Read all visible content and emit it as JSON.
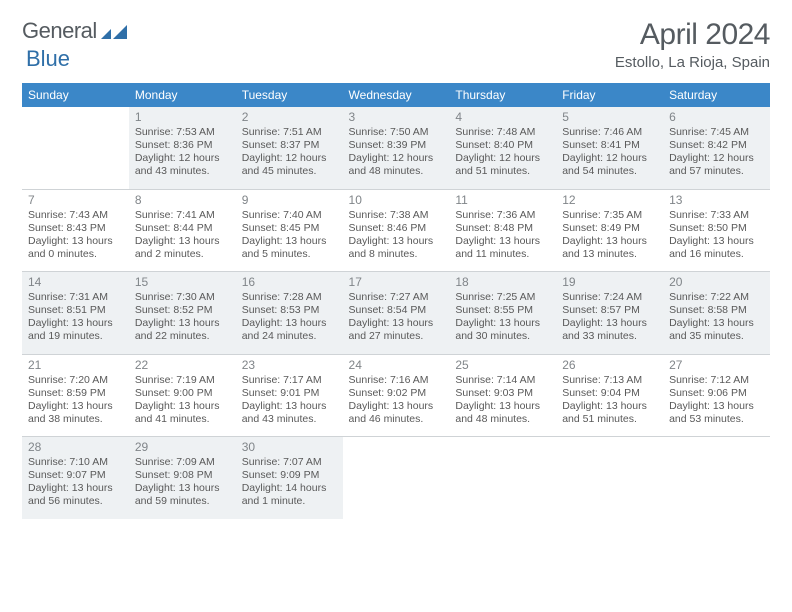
{
  "brand": {
    "part1": "General",
    "part2": "Blue",
    "logo_color": "#2f6fa8"
  },
  "title": "April 2024",
  "location": "Estollo, La Rioja, Spain",
  "colors": {
    "header_bg": "#3b87c8",
    "header_text": "#ffffff",
    "shade_row_bg": "#eef1f3",
    "text": "#595959",
    "daynum": "#808589",
    "rule": "#cfd3d6"
  },
  "dow": [
    "Sunday",
    "Monday",
    "Tuesday",
    "Wednesday",
    "Thursday",
    "Friday",
    "Saturday"
  ],
  "weeks": [
    {
      "shade": true,
      "days": [
        null,
        {
          "n": "1",
          "sr": "7:53 AM",
          "ss": "8:36 PM",
          "dl": "12 hours and 43 minutes."
        },
        {
          "n": "2",
          "sr": "7:51 AM",
          "ss": "8:37 PM",
          "dl": "12 hours and 45 minutes."
        },
        {
          "n": "3",
          "sr": "7:50 AM",
          "ss": "8:39 PM",
          "dl": "12 hours and 48 minutes."
        },
        {
          "n": "4",
          "sr": "7:48 AM",
          "ss": "8:40 PM",
          "dl": "12 hours and 51 minutes."
        },
        {
          "n": "5",
          "sr": "7:46 AM",
          "ss": "8:41 PM",
          "dl": "12 hours and 54 minutes."
        },
        {
          "n": "6",
          "sr": "7:45 AM",
          "ss": "8:42 PM",
          "dl": "12 hours and 57 minutes."
        }
      ]
    },
    {
      "shade": false,
      "days": [
        {
          "n": "7",
          "sr": "7:43 AM",
          "ss": "8:43 PM",
          "dl": "13 hours and 0 minutes."
        },
        {
          "n": "8",
          "sr": "7:41 AM",
          "ss": "8:44 PM",
          "dl": "13 hours and 2 minutes."
        },
        {
          "n": "9",
          "sr": "7:40 AM",
          "ss": "8:45 PM",
          "dl": "13 hours and 5 minutes."
        },
        {
          "n": "10",
          "sr": "7:38 AM",
          "ss": "8:46 PM",
          "dl": "13 hours and 8 minutes."
        },
        {
          "n": "11",
          "sr": "7:36 AM",
          "ss": "8:48 PM",
          "dl": "13 hours and 11 minutes."
        },
        {
          "n": "12",
          "sr": "7:35 AM",
          "ss": "8:49 PM",
          "dl": "13 hours and 13 minutes."
        },
        {
          "n": "13",
          "sr": "7:33 AM",
          "ss": "8:50 PM",
          "dl": "13 hours and 16 minutes."
        }
      ]
    },
    {
      "shade": true,
      "days": [
        {
          "n": "14",
          "sr": "7:31 AM",
          "ss": "8:51 PM",
          "dl": "13 hours and 19 minutes."
        },
        {
          "n": "15",
          "sr": "7:30 AM",
          "ss": "8:52 PM",
          "dl": "13 hours and 22 minutes."
        },
        {
          "n": "16",
          "sr": "7:28 AM",
          "ss": "8:53 PM",
          "dl": "13 hours and 24 minutes."
        },
        {
          "n": "17",
          "sr": "7:27 AM",
          "ss": "8:54 PM",
          "dl": "13 hours and 27 minutes."
        },
        {
          "n": "18",
          "sr": "7:25 AM",
          "ss": "8:55 PM",
          "dl": "13 hours and 30 minutes."
        },
        {
          "n": "19",
          "sr": "7:24 AM",
          "ss": "8:57 PM",
          "dl": "13 hours and 33 minutes."
        },
        {
          "n": "20",
          "sr": "7:22 AM",
          "ss": "8:58 PM",
          "dl": "13 hours and 35 minutes."
        }
      ]
    },
    {
      "shade": false,
      "days": [
        {
          "n": "21",
          "sr": "7:20 AM",
          "ss": "8:59 PM",
          "dl": "13 hours and 38 minutes."
        },
        {
          "n": "22",
          "sr": "7:19 AM",
          "ss": "9:00 PM",
          "dl": "13 hours and 41 minutes."
        },
        {
          "n": "23",
          "sr": "7:17 AM",
          "ss": "9:01 PM",
          "dl": "13 hours and 43 minutes."
        },
        {
          "n": "24",
          "sr": "7:16 AM",
          "ss": "9:02 PM",
          "dl": "13 hours and 46 minutes."
        },
        {
          "n": "25",
          "sr": "7:14 AM",
          "ss": "9:03 PM",
          "dl": "13 hours and 48 minutes."
        },
        {
          "n": "26",
          "sr": "7:13 AM",
          "ss": "9:04 PM",
          "dl": "13 hours and 51 minutes."
        },
        {
          "n": "27",
          "sr": "7:12 AM",
          "ss": "9:06 PM",
          "dl": "13 hours and 53 minutes."
        }
      ]
    },
    {
      "shade": true,
      "days": [
        {
          "n": "28",
          "sr": "7:10 AM",
          "ss": "9:07 PM",
          "dl": "13 hours and 56 minutes."
        },
        {
          "n": "29",
          "sr": "7:09 AM",
          "ss": "9:08 PM",
          "dl": "13 hours and 59 minutes."
        },
        {
          "n": "30",
          "sr": "7:07 AM",
          "ss": "9:09 PM",
          "dl": "14 hours and 1 minute."
        },
        null,
        null,
        null,
        null
      ]
    }
  ],
  "labels": {
    "sunrise": "Sunrise:",
    "sunset": "Sunset:",
    "daylight": "Daylight:"
  }
}
